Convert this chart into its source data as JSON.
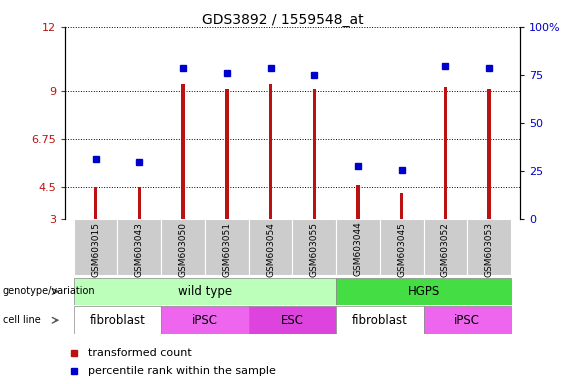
{
  "title": "GDS3892 / 1559548_at",
  "samples": [
    "GSM603015",
    "GSM603043",
    "GSM603050",
    "GSM603051",
    "GSM603054",
    "GSM603055",
    "GSM603044",
    "GSM603045",
    "GSM603052",
    "GSM603053"
  ],
  "bar_values": [
    4.5,
    4.5,
    9.3,
    9.1,
    9.3,
    9.1,
    4.6,
    4.2,
    9.2,
    9.1
  ],
  "dot_values": [
    5.8,
    5.65,
    10.05,
    9.85,
    10.05,
    9.75,
    5.5,
    5.3,
    10.15,
    10.05
  ],
  "bar_color": "#bb1111",
  "dot_color": "#0000cc",
  "ylim_left": [
    3,
    12
  ],
  "ylim_right": [
    0,
    100
  ],
  "yticks_left": [
    3,
    4.5,
    6.75,
    9,
    12
  ],
  "ytick_labels_left": [
    "3",
    "4.5",
    "6.75",
    "9",
    "12"
  ],
  "yticks_right": [
    0,
    25,
    50,
    75,
    100
  ],
  "ytick_labels_right": [
    "0",
    "25",
    "50",
    "75",
    "100%"
  ],
  "genotype_groups": [
    {
      "label": "wild type",
      "start": 0,
      "end": 6,
      "color": "#bbffbb"
    },
    {
      "label": "HGPS",
      "start": 6,
      "end": 10,
      "color": "#44dd44"
    }
  ],
  "cell_line_groups": [
    {
      "label": "fibroblast",
      "start": 0,
      "end": 2,
      "color": "#ffffff"
    },
    {
      "label": "iPSC",
      "start": 2,
      "end": 4,
      "color": "#ee66ee"
    },
    {
      "label": "ESC",
      "start": 4,
      "end": 6,
      "color": "#dd44dd"
    },
    {
      "label": "fibroblast",
      "start": 6,
      "end": 8,
      "color": "#ffffff"
    },
    {
      "label": "iPSC",
      "start": 8,
      "end": 10,
      "color": "#ee66ee"
    }
  ],
  "legend_bar_label": "transformed count",
  "legend_dot_label": "percentile rank within the sample",
  "sample_bg_color": "#cccccc",
  "bar_width": 0.08
}
